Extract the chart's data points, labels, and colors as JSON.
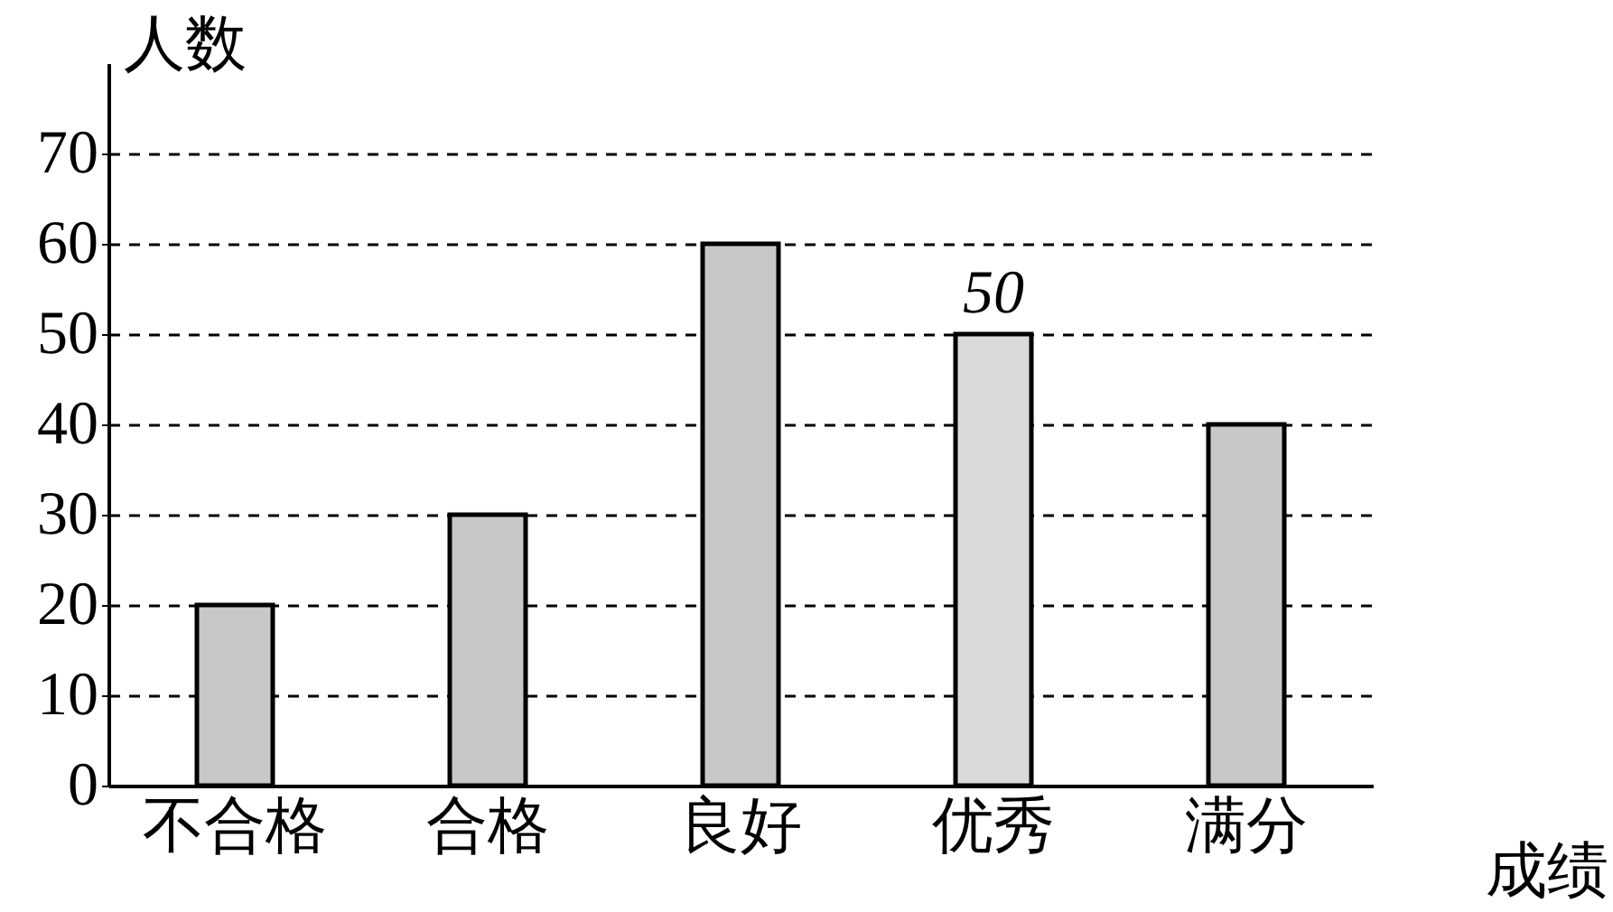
{
  "chart_data": {
    "type": "bar",
    "xlabel": "成绩",
    "ylabel": "人数",
    "categories": [
      "不合格",
      "合格",
      "良好",
      "优秀",
      "满分"
    ],
    "values": [
      20,
      30,
      60,
      50,
      40
    ],
    "colors": [
      "#c8c8c8",
      "#c8c8c8",
      "#c8c8c8",
      "#dadada",
      "#c8c8c8"
    ],
    "value_labels": [
      null,
      null,
      null,
      "50",
      null
    ],
    "ylim": [
      0,
      80
    ],
    "yticks": [
      0,
      10,
      20,
      30,
      40,
      50,
      60,
      70
    ],
    "grid": "y"
  }
}
